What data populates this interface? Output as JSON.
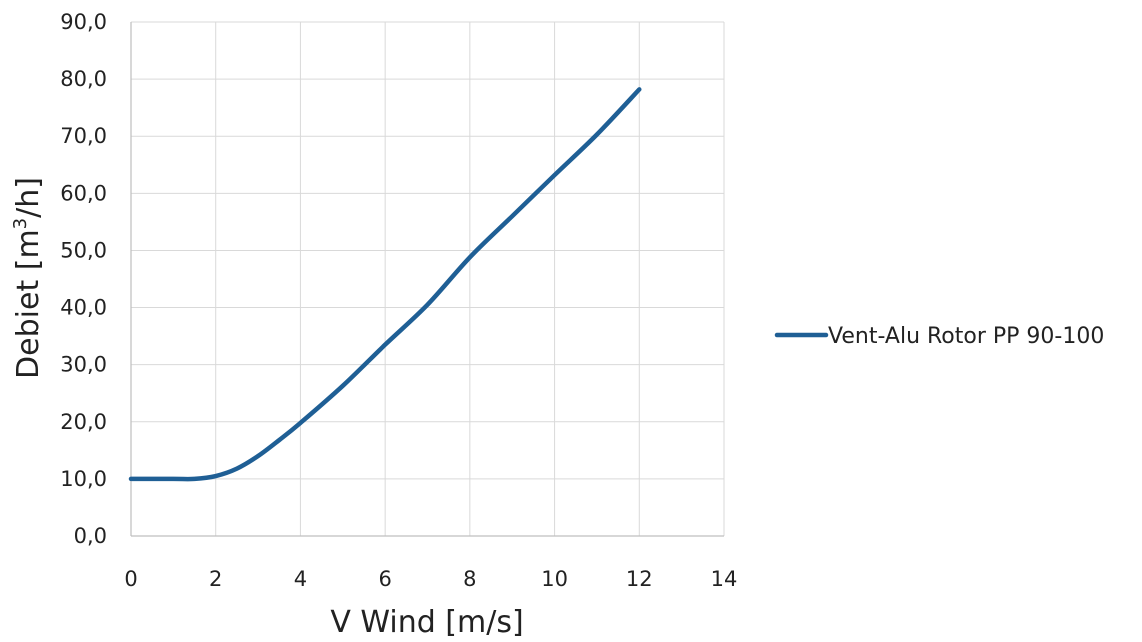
{
  "chart_data": {
    "type": "line",
    "xlabel": "V Wind [m/s]",
    "ylabel_main": "Debiet [m",
    "ylabel_sup": "3",
    "ylabel_tail": "/h]",
    "xlim": [
      0,
      14
    ],
    "ylim": [
      0,
      90
    ],
    "x_ticks": [
      0,
      2,
      4,
      6,
      8,
      10,
      12,
      14
    ],
    "x_tick_labels": [
      "0",
      "2",
      "4",
      "6",
      "8",
      "10",
      "12",
      "14"
    ],
    "y_ticks": [
      0,
      10,
      20,
      30,
      40,
      50,
      60,
      70,
      80,
      90
    ],
    "y_tick_labels": [
      "0,0",
      "10,0",
      "20,0",
      "30,0",
      "40,0",
      "50,0",
      "60,0",
      "70,0",
      "80,0",
      "90,0"
    ],
    "grid": true,
    "legend_position": "right",
    "series": [
      {
        "name": "Vent-Alu Rotor PP 90-100",
        "color": "#1f5f95",
        "x": [
          0,
          1,
          1.5,
          2,
          2.5,
          3,
          3.5,
          4,
          5,
          6,
          7,
          8,
          9,
          10,
          11,
          12
        ],
        "y": [
          10.0,
          10.0,
          10.0,
          10.5,
          11.8,
          14.0,
          16.8,
          19.8,
          26.3,
          33.5,
          40.5,
          48.8,
          56.0,
          63.2,
          70.3,
          78.2
        ]
      }
    ]
  }
}
